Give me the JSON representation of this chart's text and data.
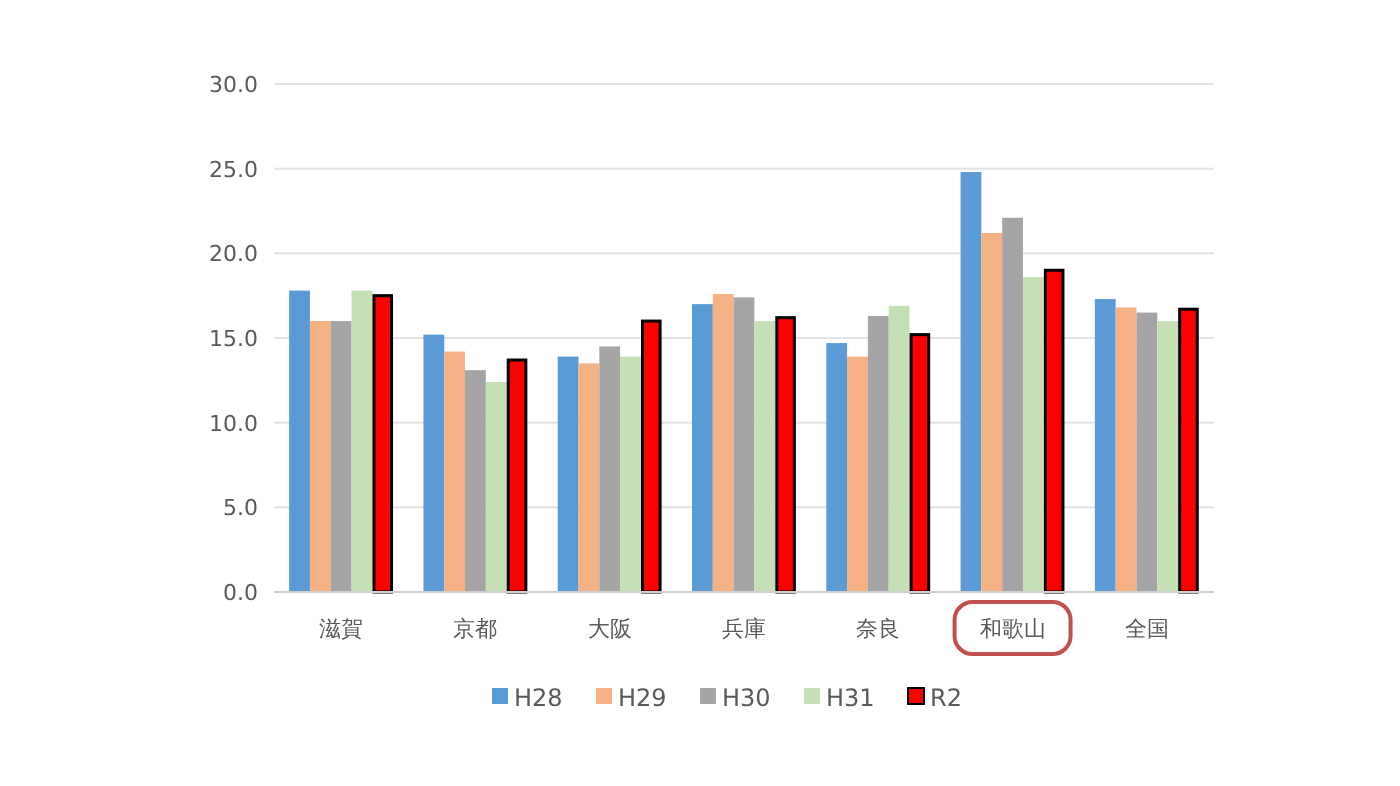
{
  "chart_data": {
    "type": "bar",
    "categories": [
      "滋賀",
      "京都",
      "大阪",
      "兵庫",
      "奈良",
      "和歌山",
      "全国"
    ],
    "series": [
      {
        "name": "H28",
        "color": "#5b9bd5",
        "values": [
          17.8,
          15.2,
          13.9,
          17.0,
          14.7,
          24.8,
          17.3
        ]
      },
      {
        "name": "H29",
        "color": "#f4b183",
        "values": [
          16.0,
          14.2,
          13.5,
          17.6,
          13.9,
          21.2,
          16.8
        ]
      },
      {
        "name": "H30",
        "color": "#a5a5a5",
        "values": [
          16.0,
          13.1,
          14.5,
          17.4,
          16.3,
          22.1,
          16.5
        ]
      },
      {
        "name": "H31",
        "color": "#c5e0b4",
        "values": [
          17.8,
          12.4,
          13.9,
          16.0,
          16.9,
          18.6,
          16.0
        ]
      },
      {
        "name": "R2",
        "color": "#ff0000",
        "values": [
          17.5,
          13.7,
          16.0,
          16.2,
          15.2,
          19.0,
          16.7
        ]
      }
    ],
    "ylim": [
      0,
      30
    ],
    "yticks": [
      {
        "value": 0,
        "label": "0.0"
      },
      {
        "value": 5,
        "label": "5.0"
      },
      {
        "value": 10,
        "label": "10.0"
      },
      {
        "value": 15,
        "label": "15.0"
      },
      {
        "value": 20,
        "label": "20.0"
      },
      {
        "value": 25,
        "label": "25.0"
      },
      {
        "value": 30,
        "label": "30.0"
      }
    ],
    "grid": "y",
    "legend": "bottom"
  }
}
